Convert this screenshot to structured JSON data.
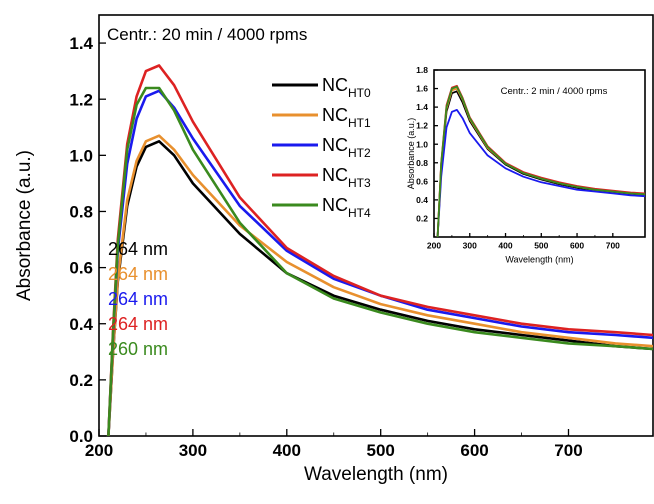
{
  "chart_data": [
    {
      "type": "line",
      "title": "Centr.: 20 min / 4000 rpms",
      "xlabel": "Wavelength (nm)",
      "ylabel": "Absorbance (a.u.)",
      "xlim": [
        200,
        790
      ],
      "ylim": [
        0.0,
        1.5
      ],
      "xticks": [
        200,
        300,
        400,
        500,
        600,
        700
      ],
      "yticks": [
        0.0,
        0.2,
        0.4,
        0.6,
        0.8,
        1.0,
        1.2,
        1.4
      ],
      "x": [
        210,
        215,
        220,
        230,
        240,
        250,
        264,
        280,
        300,
        350,
        400,
        450,
        500,
        550,
        600,
        650,
        700,
        750,
        790
      ],
      "legend_position": "top-center",
      "series": [
        {
          "name_main": "NC",
          "name_sub": "HT0",
          "color": "#000000",
          "peak_label": "264 nm",
          "values": [
            0.0,
            0.3,
            0.55,
            0.82,
            0.96,
            1.03,
            1.05,
            1.0,
            0.9,
            0.72,
            0.58,
            0.5,
            0.45,
            0.41,
            0.38,
            0.36,
            0.34,
            0.32,
            0.31
          ]
        },
        {
          "name_main": "NC",
          "name_sub": "HT1",
          "color": "#e8902e",
          "peak_label": "264 nm",
          "values": [
            0.0,
            0.3,
            0.56,
            0.84,
            0.98,
            1.05,
            1.07,
            1.02,
            0.93,
            0.75,
            0.62,
            0.53,
            0.47,
            0.43,
            0.4,
            0.37,
            0.35,
            0.33,
            0.32
          ]
        },
        {
          "name_main": "NC",
          "name_sub": "HT2",
          "color": "#1a1aee",
          "peak_label": "264 nm",
          "values": [
            0.0,
            0.36,
            0.66,
            0.97,
            1.13,
            1.21,
            1.23,
            1.17,
            1.06,
            0.82,
            0.66,
            0.56,
            0.5,
            0.45,
            0.42,
            0.39,
            0.37,
            0.36,
            0.35
          ]
        },
        {
          "name_main": "NC",
          "name_sub": "HT3",
          "color": "#dd2222",
          "peak_label": "264 nm",
          "values": [
            0.0,
            0.38,
            0.7,
            1.04,
            1.21,
            1.3,
            1.32,
            1.25,
            1.12,
            0.85,
            0.67,
            0.57,
            0.5,
            0.46,
            0.43,
            0.4,
            0.38,
            0.37,
            0.36
          ]
        },
        {
          "name_main": "NC",
          "name_sub": "HT4",
          "color": "#3a8a1e",
          "peak_label": "260 nm",
          "values": [
            0.0,
            0.37,
            0.68,
            1.02,
            1.18,
            1.24,
            1.24,
            1.16,
            1.02,
            0.76,
            0.58,
            0.49,
            0.44,
            0.4,
            0.37,
            0.35,
            0.33,
            0.32,
            0.31
          ]
        }
      ]
    },
    {
      "type": "line",
      "title": "Centr.: 2 min / 4000 rpms",
      "xlabel": "Wavelength (nm)",
      "ylabel": "Absorbance (a.u.)",
      "xlim": [
        200,
        790
      ],
      "ylim": [
        0.0,
        1.8
      ],
      "xticks": [
        200,
        300,
        400,
        500,
        600,
        700
      ],
      "yticks": [
        0.2,
        0.4,
        0.6,
        0.8,
        1.0,
        1.2,
        1.4,
        1.6,
        1.8
      ],
      "x": [
        210,
        220,
        235,
        250,
        264,
        280,
        300,
        350,
        400,
        450,
        500,
        550,
        600,
        650,
        700,
        750,
        790
      ],
      "series": [
        {
          "color": "#000000",
          "values": [
            0.0,
            0.75,
            1.35,
            1.55,
            1.57,
            1.45,
            1.25,
            0.95,
            0.78,
            0.68,
            0.62,
            0.57,
            0.53,
            0.5,
            0.48,
            0.46,
            0.45
          ]
        },
        {
          "color": "#e8902e",
          "values": [
            0.0,
            0.78,
            1.38,
            1.58,
            1.6,
            1.48,
            1.27,
            0.96,
            0.79,
            0.69,
            0.63,
            0.58,
            0.54,
            0.51,
            0.49,
            0.47,
            0.46
          ]
        },
        {
          "color": "#1a1aee",
          "values": [
            0.0,
            0.65,
            1.18,
            1.35,
            1.37,
            1.28,
            1.12,
            0.88,
            0.74,
            0.65,
            0.59,
            0.55,
            0.51,
            0.49,
            0.47,
            0.45,
            0.44
          ]
        },
        {
          "color": "#dd2222",
          "values": [
            0.0,
            0.8,
            1.42,
            1.61,
            1.63,
            1.5,
            1.29,
            0.98,
            0.8,
            0.7,
            0.64,
            0.59,
            0.55,
            0.52,
            0.5,
            0.48,
            0.47
          ]
        },
        {
          "color": "#3a8a1e",
          "values": [
            0.0,
            0.79,
            1.4,
            1.6,
            1.62,
            1.49,
            1.28,
            0.97,
            0.79,
            0.69,
            0.63,
            0.58,
            0.54,
            0.51,
            0.49,
            0.47,
            0.46
          ]
        }
      ]
    }
  ]
}
